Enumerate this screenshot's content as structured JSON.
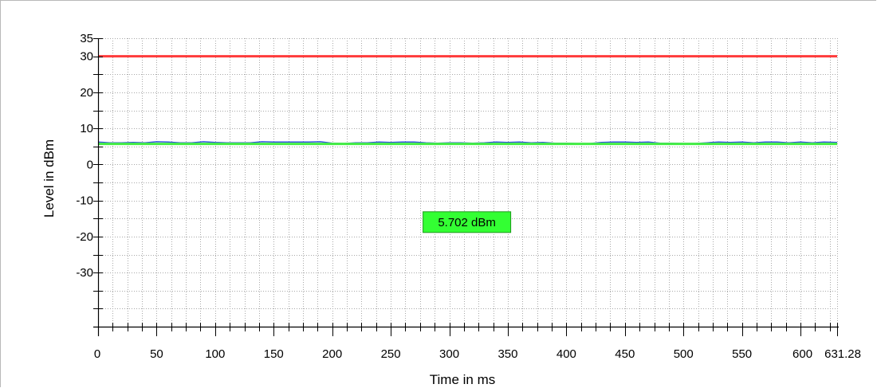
{
  "chart_data": {
    "type": "line",
    "xlabel": "Time in ms",
    "ylabel": "Level in dBm",
    "xlim": [
      0,
      631.28
    ],
    "ylim": [
      -45,
      35
    ],
    "x_tick_labels": [
      "0",
      "50",
      "100",
      "150",
      "200",
      "250",
      "300",
      "350",
      "400",
      "450",
      "500",
      "550",
      "600",
      "631.28"
    ],
    "x_tick_values": [
      0,
      50,
      100,
      150,
      200,
      250,
      300,
      350,
      400,
      450,
      500,
      550,
      600,
      631.28
    ],
    "y_tick_labels": [
      "35",
      "30",
      "20",
      "10",
      "0",
      "-10",
      "-20",
      "-30"
    ],
    "y_tick_values": [
      35,
      30,
      20,
      10,
      0,
      -10,
      -20,
      -30
    ],
    "grid": true,
    "series": [
      {
        "color": "#ff3b3b",
        "x": [
          0,
          631.28
        ],
        "y": [
          30,
          30
        ]
      },
      {
        "color": "#3355dd",
        "x": [
          0,
          10,
          20,
          30,
          40,
          50,
          60,
          70,
          80,
          90,
          100,
          110,
          120,
          130,
          140,
          150,
          160,
          170,
          180,
          190,
          200,
          210,
          220,
          230,
          240,
          250,
          260,
          270,
          280,
          290,
          300,
          310,
          320,
          330,
          340,
          350,
          360,
          370,
          380,
          390,
          400,
          410,
          420,
          430,
          440,
          450,
          460,
          470,
          480,
          490,
          500,
          510,
          520,
          530,
          540,
          550,
          560,
          570,
          580,
          590,
          600,
          610,
          620,
          631.28
        ],
        "y": [
          6.2,
          6.0,
          6.0,
          6.1,
          6.0,
          6.3,
          6.2,
          6.0,
          6.0,
          6.3,
          6.1,
          6.0,
          6.0,
          6.0,
          6.3,
          6.2,
          6.2,
          6.2,
          6.2,
          6.3,
          5.9,
          5.8,
          6.0,
          6.0,
          6.2,
          6.1,
          6.2,
          6.2,
          6.0,
          5.9,
          6.0,
          6.0,
          5.9,
          6.0,
          6.2,
          6.1,
          6.2,
          6.0,
          6.1,
          5.9,
          5.9,
          5.8,
          5.8,
          6.1,
          6.2,
          6.2,
          6.1,
          6.2,
          5.9,
          5.9,
          5.8,
          5.8,
          6.0,
          6.2,
          6.1,
          6.2,
          6.0,
          6.2,
          6.2,
          6.0,
          6.2,
          6.0,
          6.2,
          6.1
        ]
      },
      {
        "color": "#44ee44",
        "x": [
          0,
          631.28
        ],
        "y": [
          5.702,
          5.702
        ]
      }
    ],
    "annotations": [
      {
        "text": "5.702 dBm",
        "x": 315,
        "y": -16,
        "background": "#33ff33"
      }
    ]
  }
}
